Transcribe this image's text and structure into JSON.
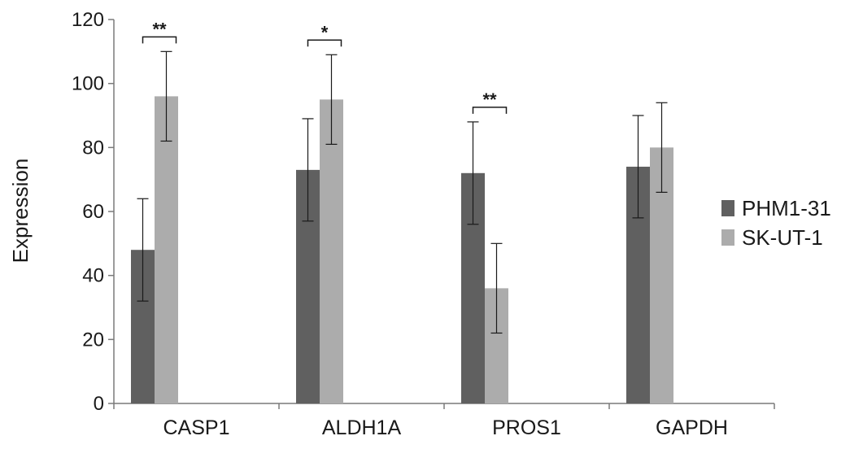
{
  "chart_data": {
    "type": "bar",
    "ylabel": "Expression",
    "ylim": [
      0,
      120
    ],
    "yticks": [
      0,
      20,
      40,
      60,
      80,
      100,
      120
    ],
    "grid": false,
    "legend_position": "right",
    "categories": [
      "CASP1",
      "ALDH1A",
      "PROS1",
      "GAPDH"
    ],
    "series": [
      {
        "name": "PHM1-31",
        "color": "#606060",
        "values": [
          48,
          73,
          72,
          74
        ],
        "errors": [
          16,
          16,
          16,
          16
        ]
      },
      {
        "name": "SK-UT-1",
        "color": "#acacac",
        "values": [
          96,
          95,
          36,
          80
        ],
        "errors": [
          14,
          14,
          14,
          14
        ]
      }
    ],
    "annotations": [
      {
        "category": "CASP1",
        "text": "**"
      },
      {
        "category": "ALDH1A",
        "text": "*"
      },
      {
        "category": "PROS1",
        "text": "**"
      }
    ]
  }
}
